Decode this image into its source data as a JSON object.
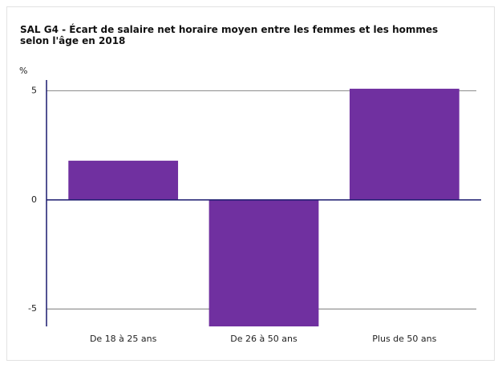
{
  "chart_data": {
    "type": "bar",
    "title": "SAL G4 - Écart de salaire net horaire moyen entre les femmes et les hommes selon l'âge en 2018",
    "y_label": "%",
    "categories": [
      "De 18 à 25 ans",
      "De 26 à 50 ans",
      "Plus de 50 ans"
    ],
    "values": [
      1.8,
      -5.8,
      5.1
    ],
    "color": "#7030a0",
    "ylim": [
      -5.8,
      5.5
    ],
    "yticks": [
      -5,
      0,
      5
    ],
    "grid": true
  }
}
